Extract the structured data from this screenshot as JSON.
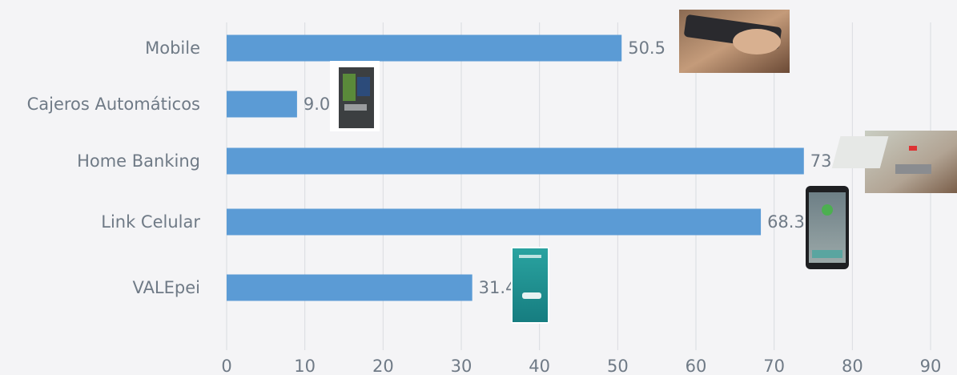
{
  "chart_data": {
    "type": "bar",
    "orientation": "horizontal",
    "categories": [
      "Mobile",
      "Cajeros Automáticos",
      "Home Banking",
      "Link Celular",
      "VALEpei"
    ],
    "values": [
      50.5,
      9.0,
      73.8,
      68.3,
      31.4
    ],
    "value_labels": [
      "50.5",
      "9.0",
      "73.8",
      "68.3",
      "31.4"
    ],
    "xlim": [
      0,
      90
    ],
    "xticks": [
      0,
      10,
      20,
      30,
      40,
      50,
      60,
      70,
      80,
      90
    ],
    "grid": true,
    "bar_color": "#5b9bd5",
    "title": "",
    "xlabel": "",
    "ylabel": ""
  },
  "decorations": {
    "icons": [
      "phone-in-hand-photo",
      "atm-machine-photo",
      "laptop-payment-photo",
      "smartphone-app-photo",
      "valepei-app-photo"
    ]
  }
}
